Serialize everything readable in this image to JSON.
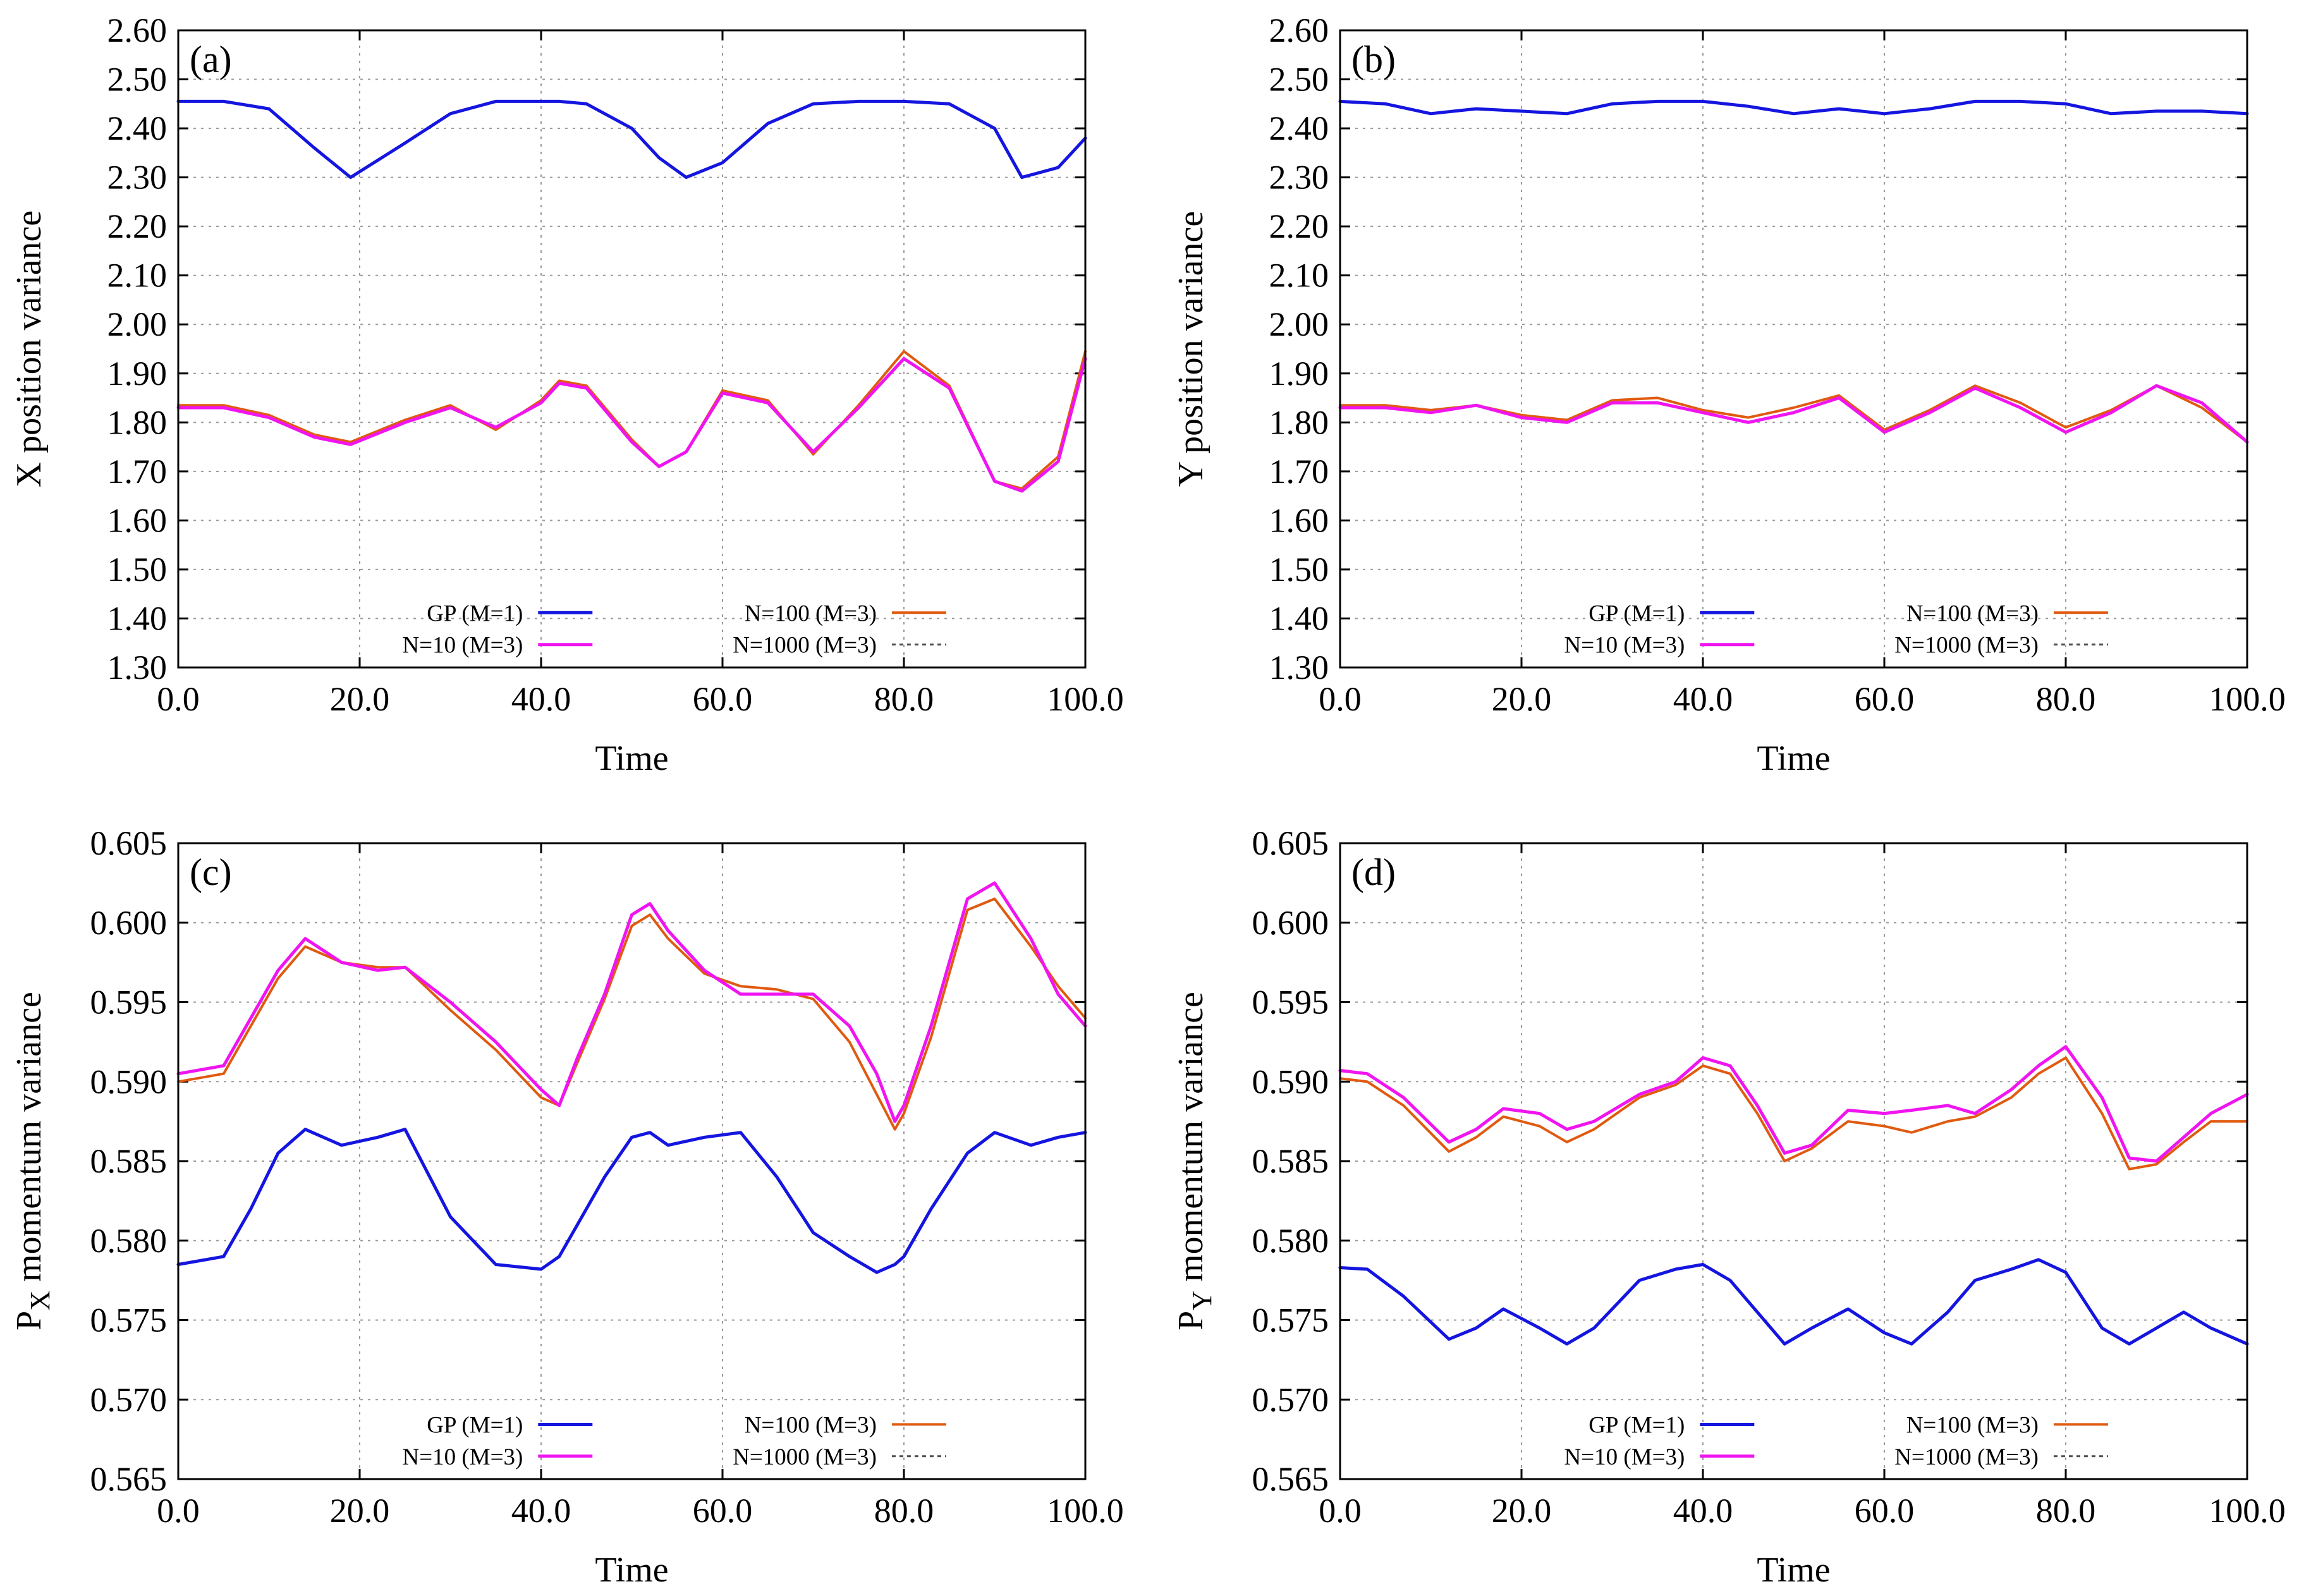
{
  "colors": {
    "gp": "#1515e0",
    "n10": "#f015f0",
    "n100": "#e05a10",
    "n1000": "#505050"
  },
  "chart_data": [
    {
      "type": "line",
      "panel": "(a)",
      "title": "",
      "xlabel": "Time",
      "ylabel": "X position variance",
      "xlim": [
        0,
        100
      ],
      "ylim": [
        1.3,
        2.6
      ],
      "xticks": [
        "0.0",
        "20.0",
        "40.0",
        "60.0",
        "80.0",
        "100.0"
      ],
      "yticks": [
        "1.30",
        "1.40",
        "1.50",
        "1.60",
        "1.70",
        "1.80",
        "1.90",
        "2.00",
        "2.10",
        "2.20",
        "2.30",
        "2.40",
        "2.50",
        "2.60"
      ],
      "grid": true,
      "legend_position": "bottom-center",
      "x": [
        0,
        5,
        10,
        15,
        19,
        25,
        30,
        35,
        40,
        42,
        45,
        50,
        53,
        56,
        60,
        65,
        70,
        75,
        80,
        85,
        90,
        93,
        97,
        100
      ],
      "series": [
        {
          "name": "GP (M=1)",
          "color_key": "gp",
          "values": [
            2.455,
            2.455,
            2.44,
            2.36,
            2.3,
            2.37,
            2.43,
            2.455,
            2.455,
            2.455,
            2.45,
            2.4,
            2.34,
            2.3,
            2.33,
            2.41,
            2.45,
            2.455,
            2.455,
            2.45,
            2.4,
            2.3,
            2.32,
            2.38
          ]
        },
        {
          "name": "N=10 (M=3)",
          "color_key": "n10",
          "values": [
            1.83,
            1.83,
            1.81,
            1.77,
            1.755,
            1.8,
            1.83,
            1.79,
            1.84,
            1.88,
            1.87,
            1.76,
            1.71,
            1.74,
            1.86,
            1.84,
            1.74,
            1.83,
            1.93,
            1.87,
            1.68,
            1.66,
            1.72,
            1.93
          ]
        },
        {
          "name": "N=100 (M=3)",
          "color_key": "n100",
          "values": [
            1.835,
            1.835,
            1.815,
            1.775,
            1.76,
            1.805,
            1.835,
            1.785,
            1.845,
            1.885,
            1.875,
            1.765,
            1.71,
            1.74,
            1.865,
            1.845,
            1.735,
            1.835,
            1.945,
            1.875,
            1.68,
            1.665,
            1.73,
            1.945
          ]
        },
        {
          "name": "N=1000 (M=3)",
          "color_key": "n1000",
          "values": [
            1.835,
            1.835,
            1.815,
            1.775,
            1.76,
            1.805,
            1.835,
            1.785,
            1.845,
            1.885,
            1.875,
            1.765,
            1.71,
            1.74,
            1.865,
            1.845,
            1.735,
            1.835,
            1.945,
            1.875,
            1.68,
            1.665,
            1.73,
            1.945
          ]
        }
      ]
    },
    {
      "type": "line",
      "panel": "(b)",
      "title": "",
      "xlabel": "Time",
      "ylabel": "Y position variance",
      "xlim": [
        0,
        100
      ],
      "ylim": [
        1.3,
        2.6
      ],
      "xticks": [
        "0.0",
        "20.0",
        "40.0",
        "60.0",
        "80.0",
        "100.0"
      ],
      "yticks": [
        "1.30",
        "1.40",
        "1.50",
        "1.60",
        "1.70",
        "1.80",
        "1.90",
        "2.00",
        "2.10",
        "2.20",
        "2.30",
        "2.40",
        "2.50",
        "2.60"
      ],
      "grid": true,
      "legend_position": "bottom-center",
      "x": [
        0,
        5,
        10,
        15,
        20,
        25,
        30,
        35,
        40,
        45,
        50,
        55,
        60,
        65,
        70,
        75,
        80,
        85,
        90,
        95,
        100
      ],
      "series": [
        {
          "name": "GP (M=1)",
          "color_key": "gp",
          "values": [
            2.455,
            2.45,
            2.43,
            2.44,
            2.435,
            2.43,
            2.45,
            2.455,
            2.455,
            2.445,
            2.43,
            2.44,
            2.43,
            2.44,
            2.455,
            2.455,
            2.45,
            2.43,
            2.435,
            2.435,
            2.43
          ]
        },
        {
          "name": "N=10 (M=3)",
          "color_key": "n10",
          "values": [
            1.83,
            1.83,
            1.82,
            1.835,
            1.81,
            1.8,
            1.84,
            1.84,
            1.82,
            1.8,
            1.82,
            1.85,
            1.78,
            1.82,
            1.87,
            1.83,
            1.78,
            1.82,
            1.875,
            1.84,
            1.76
          ]
        },
        {
          "name": "N=100 (M=3)",
          "color_key": "n100",
          "values": [
            1.835,
            1.835,
            1.825,
            1.835,
            1.815,
            1.805,
            1.845,
            1.85,
            1.825,
            1.81,
            1.83,
            1.855,
            1.785,
            1.825,
            1.875,
            1.84,
            1.79,
            1.825,
            1.875,
            1.83,
            1.76
          ]
        },
        {
          "name": "N=1000 (M=3)",
          "color_key": "n1000",
          "values": [
            1.835,
            1.835,
            1.825,
            1.835,
            1.815,
            1.805,
            1.845,
            1.85,
            1.825,
            1.81,
            1.83,
            1.855,
            1.785,
            1.825,
            1.875,
            1.84,
            1.79,
            1.825,
            1.875,
            1.83,
            1.76
          ]
        }
      ]
    },
    {
      "type": "line",
      "panel": "(c)",
      "title": "",
      "xlabel": "Time",
      "ylabel": "P",
      "ylabel_subscript": "X",
      "ylabel_rest": " momentum variance",
      "xlim": [
        0,
        100
      ],
      "ylim": [
        0.565,
        0.605
      ],
      "xticks": [
        "0.0",
        "20.0",
        "40.0",
        "60.0",
        "80.0",
        "100.0"
      ],
      "yticks": [
        "0.565",
        "0.570",
        "0.575",
        "0.580",
        "0.585",
        "0.590",
        "0.595",
        "0.600",
        "0.605"
      ],
      "grid": true,
      "legend_position": "bottom-center",
      "x": [
        0,
        5,
        8,
        11,
        14,
        18,
        22,
        25,
        30,
        35,
        40,
        42,
        44,
        47,
        50,
        52,
        54,
        58,
        62,
        66,
        70,
        74,
        77,
        79,
        80,
        83,
        87,
        90,
        94,
        97,
        100
      ],
      "series": [
        {
          "name": "GP (M=1)",
          "color_key": "gp",
          "values": [
            0.5785,
            0.579,
            0.582,
            0.5855,
            0.587,
            0.586,
            0.5865,
            0.587,
            0.5815,
            0.5785,
            0.5782,
            0.579,
            0.581,
            0.584,
            0.5865,
            0.5868,
            0.586,
            0.5865,
            0.5868,
            0.584,
            0.5805,
            0.579,
            0.578,
            0.5785,
            0.579,
            0.582,
            0.5855,
            0.5868,
            0.586,
            0.5865,
            0.5868
          ]
        },
        {
          "name": "N=10 (M=3)",
          "color_key": "n10",
          "values": [
            0.5905,
            0.591,
            0.594,
            0.597,
            0.599,
            0.5975,
            0.597,
            0.5972,
            0.595,
            0.5925,
            0.5895,
            0.5885,
            0.5915,
            0.5955,
            0.6005,
            0.6012,
            0.5995,
            0.597,
            0.5955,
            0.5955,
            0.5955,
            0.5935,
            0.5905,
            0.5875,
            0.5885,
            0.5935,
            0.6015,
            0.6025,
            0.599,
            0.5955,
            0.5935
          ]
        },
        {
          "name": "N=100 (M=3)",
          "color_key": "n100",
          "values": [
            0.59,
            0.5905,
            0.5935,
            0.5965,
            0.5985,
            0.5975,
            0.5972,
            0.5972,
            0.5945,
            0.592,
            0.589,
            0.5885,
            0.5912,
            0.5952,
            0.5998,
            0.6005,
            0.599,
            0.5968,
            0.596,
            0.5958,
            0.5952,
            0.5925,
            0.5892,
            0.587,
            0.588,
            0.5928,
            0.6008,
            0.6015,
            0.5985,
            0.596,
            0.594
          ]
        },
        {
          "name": "N=1000 (M=3)",
          "color_key": "n1000",
          "values": [
            0.59,
            0.5905,
            0.5935,
            0.5965,
            0.5985,
            0.5975,
            0.5972,
            0.5972,
            0.5945,
            0.592,
            0.589,
            0.5885,
            0.5912,
            0.5952,
            0.5998,
            0.6005,
            0.599,
            0.5968,
            0.596,
            0.5958,
            0.5952,
            0.5925,
            0.5892,
            0.587,
            0.588,
            0.5928,
            0.6008,
            0.6015,
            0.5985,
            0.596,
            0.594
          ]
        }
      ]
    },
    {
      "type": "line",
      "panel": "(d)",
      "title": "",
      "xlabel": "Time",
      "ylabel": "P",
      "ylabel_subscript": "Y",
      "ylabel_rest": " momentum variance",
      "xlim": [
        0,
        100
      ],
      "ylim": [
        0.565,
        0.605
      ],
      "xticks": [
        "0.0",
        "20.0",
        "40.0",
        "60.0",
        "80.0",
        "100.0"
      ],
      "yticks": [
        "0.565",
        "0.570",
        "0.575",
        "0.580",
        "0.585",
        "0.590",
        "0.595",
        "0.600",
        "0.605"
      ],
      "grid": true,
      "legend_position": "bottom-center",
      "x": [
        0,
        3,
        7,
        12,
        15,
        18,
        22,
        25,
        28,
        33,
        37,
        40,
        43,
        46,
        49,
        52,
        56,
        60,
        63,
        67,
        70,
        74,
        77,
        80,
        84,
        87,
        90,
        93,
        96,
        100
      ],
      "series": [
        {
          "name": "GP (M=1)",
          "color_key": "gp",
          "values": [
            0.5783,
            0.5782,
            0.5765,
            0.5738,
            0.5745,
            0.5757,
            0.5745,
            0.5735,
            0.5745,
            0.5775,
            0.5782,
            0.5785,
            0.5775,
            0.5755,
            0.5735,
            0.5745,
            0.5757,
            0.5742,
            0.5735,
            0.5755,
            0.5775,
            0.5782,
            0.5788,
            0.578,
            0.5745,
            0.5735,
            0.5745,
            0.5755,
            0.5745,
            0.5735
          ]
        },
        {
          "name": "N=10 (M=3)",
          "color_key": "n10",
          "values": [
            0.5907,
            0.5905,
            0.589,
            0.5862,
            0.587,
            0.5883,
            0.588,
            0.587,
            0.5875,
            0.5892,
            0.59,
            0.5915,
            0.591,
            0.5885,
            0.5855,
            0.586,
            0.5882,
            0.588,
            0.5882,
            0.5885,
            0.588,
            0.5895,
            0.591,
            0.5922,
            0.589,
            0.5852,
            0.585,
            0.5865,
            0.588,
            0.5892
          ]
        },
        {
          "name": "N=100 (M=3)",
          "color_key": "n100",
          "values": [
            0.5902,
            0.59,
            0.5885,
            0.5856,
            0.5865,
            0.5878,
            0.5872,
            0.5862,
            0.587,
            0.589,
            0.5898,
            0.591,
            0.5905,
            0.588,
            0.585,
            0.5858,
            0.5875,
            0.5872,
            0.5868,
            0.5875,
            0.5878,
            0.589,
            0.5905,
            0.5915,
            0.588,
            0.5845,
            0.5848,
            0.5862,
            0.5875,
            0.5875
          ]
        },
        {
          "name": "N=1000 (M=3)",
          "color_key": "n1000",
          "values": [
            0.5902,
            0.59,
            0.5885,
            0.5856,
            0.5865,
            0.5878,
            0.5872,
            0.5862,
            0.587,
            0.589,
            0.5898,
            0.591,
            0.5905,
            0.588,
            0.585,
            0.5858,
            0.5875,
            0.5872,
            0.5868,
            0.5875,
            0.5878,
            0.589,
            0.5905,
            0.5915,
            0.588,
            0.5845,
            0.5848,
            0.5862,
            0.5875,
            0.5875
          ]
        }
      ]
    }
  ]
}
